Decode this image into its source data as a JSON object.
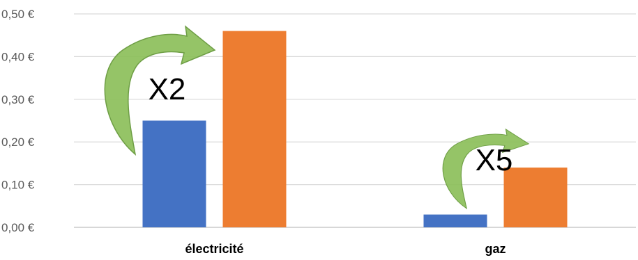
{
  "chart_data": {
    "type": "bar",
    "categories": [
      "électricité",
      "gaz"
    ],
    "series": [
      {
        "values": [
          0.25,
          0.03
        ],
        "color": "#4472C4"
      },
      {
        "values": [
          0.46,
          0.14
        ],
        "color": "#ED7D31"
      }
    ],
    "y_ticks": [
      "0,00 €",
      "0,10 €",
      "0,20 €",
      "0,30 €",
      "0,40 €",
      "0,50 €"
    ],
    "ylim": [
      0,
      0.5
    ],
    "grid": true,
    "annotations": [
      {
        "text": "X2",
        "category": "électricité",
        "arrow_color": "#8CBF5A"
      },
      {
        "text": "X5",
        "category": "gaz",
        "arrow_color": "#8CBF5A"
      }
    ]
  }
}
